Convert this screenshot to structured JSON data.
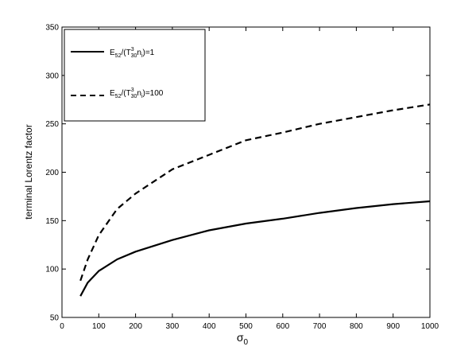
{
  "chart_data": {
    "type": "line",
    "xlabel": "σ",
    "xlabel_sub": "0",
    "ylabel": "terminal Lorentz factor",
    "xlim": [
      0,
      1000
    ],
    "ylim": [
      50,
      350
    ],
    "xticks": [
      0,
      100,
      200,
      300,
      400,
      500,
      600,
      700,
      800,
      900,
      1000
    ],
    "yticks": [
      50,
      100,
      150,
      200,
      250,
      300,
      350
    ],
    "grid": false,
    "legend_position": "top-left",
    "series": [
      {
        "legend_parts": [
          "E",
          "52",
          "/(T",
          "3",
          "30",
          "n",
          "i",
          ")=1"
        ],
        "style": "solid",
        "color": "#000000",
        "x": [
          50,
          70,
          100,
          150,
          200,
          300,
          400,
          500,
          600,
          700,
          800,
          900,
          1000
        ],
        "y": [
          72,
          86,
          98,
          110,
          118,
          130,
          140,
          147,
          152,
          158,
          163,
          167,
          170
        ]
      },
      {
        "legend_parts": [
          "E",
          "52",
          "/(T",
          "3",
          "30",
          "n",
          "i",
          ")=100"
        ],
        "style": "dashed",
        "color": "#000000",
        "x": [
          50,
          70,
          100,
          150,
          200,
          300,
          400,
          500,
          600,
          700,
          800,
          900,
          1000
        ],
        "y": [
          88,
          110,
          135,
          162,
          178,
          203,
          218,
          233,
          241,
          250,
          257,
          264,
          270
        ]
      }
    ]
  }
}
